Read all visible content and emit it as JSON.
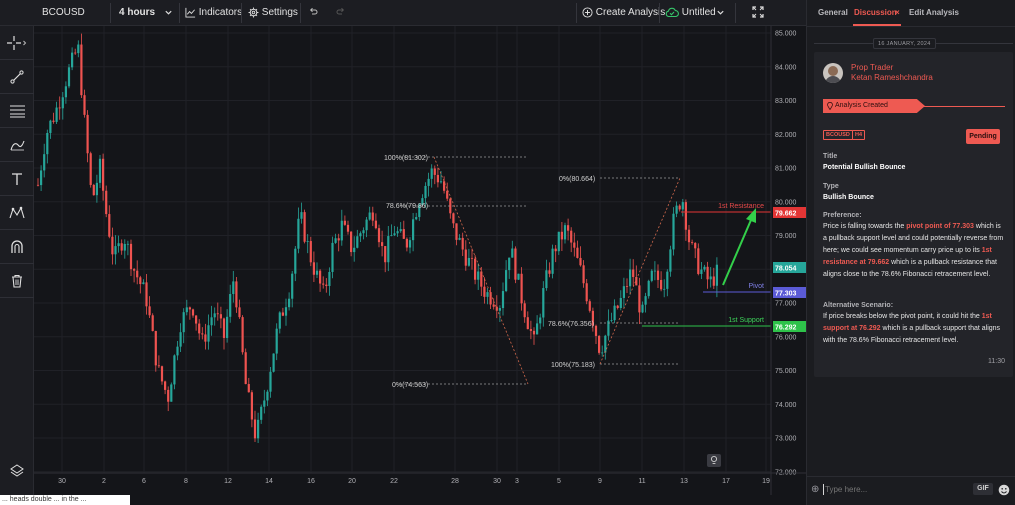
{
  "toolbar": {
    "symbol": "BCOUSD",
    "interval": "4 hours",
    "indicators": "Indicators",
    "settings": "Settings",
    "create_analysis": "Create Analysis",
    "untitled": "Untitled"
  },
  "left_tools": [
    "crosshair-icon",
    "trend-line-icon",
    "horizontal-lines-icon",
    "brush-icon",
    "text-icon",
    "pattern-icon",
    "magnet-icon",
    "trash-icon",
    "layers-icon"
  ],
  "chart": {
    "price_labels": [
      "85.000",
      "84.000",
      "83.000",
      "82.000",
      "81.000",
      "80.000",
      "79.000",
      "78.000",
      "77.000",
      "76.000",
      "75.000",
      "74.000",
      "73.000",
      "72.000"
    ],
    "date_labels": [
      "30",
      "2",
      "6",
      "8",
      "12",
      "14",
      "16",
      "20",
      "22",
      "28",
      "30",
      "3",
      "5",
      "9",
      "11",
      "13",
      "17",
      "19"
    ],
    "fib_labels": {
      "a100": "100%(81.302)",
      "a786": "78.6%(79.86)",
      "a0": "0%(74.563)",
      "b0": "0%(80.664)",
      "b786": "78.6%(76.356)",
      "b100": "100%(75.183)"
    },
    "levels": {
      "resistance_label": "1st Resistance",
      "resistance_price": "79.662",
      "pivot_label": "Pivot",
      "pivot_price": "77.303",
      "support_label": "1st Support",
      "support_price": "76.292",
      "current_price": "78.054"
    },
    "colors": {
      "up": "#26a69a",
      "down": "#ef5350",
      "resistance": "#e33535",
      "pivot": "#5b5bd6",
      "support": "#2ec24a",
      "arrow": "#33d04a"
    }
  },
  "panel": {
    "tabs": [
      "General",
      "Discussion",
      "Edit Analysis"
    ],
    "date": "16 JANUARY, 2024",
    "author_role": "Prop Trader",
    "author_name": "Ketan Rameshchandra",
    "banner": "Analysis Created",
    "tags": [
      "BCOUSD",
      "H4"
    ],
    "status": "Pending",
    "title_label": "Title",
    "title_value": "Potential Bullish Bounce",
    "type_label": "Type",
    "type_value": "Bullish Bounce",
    "preference_label": "Preference:",
    "pref_1": "Price is falling towards the ",
    "pref_hl1": "pivot point of 77.303",
    "pref_2": " which is a pullback support level and could potentially reverse from here; we could see momentum carry price up to its ",
    "pref_hl2": "1st resistance at 79.662",
    "pref_3": " which is a pullback resistance that aligns close to the 78.6% Fibonacci retracement level.",
    "alt_label": "Alternative Scenario:",
    "alt_1": "If price breaks below the pivot point, it could hit the ",
    "alt_hl": "1st support at 76.292",
    "alt_2": " which is a pullback support that aligns with the 78.6% Fibonacci retracement level.",
    "time": "11:30",
    "input_placeholder": "Type here...",
    "gif": "GIF"
  },
  "bottom_fragment": "... heads double ... in the ..."
}
